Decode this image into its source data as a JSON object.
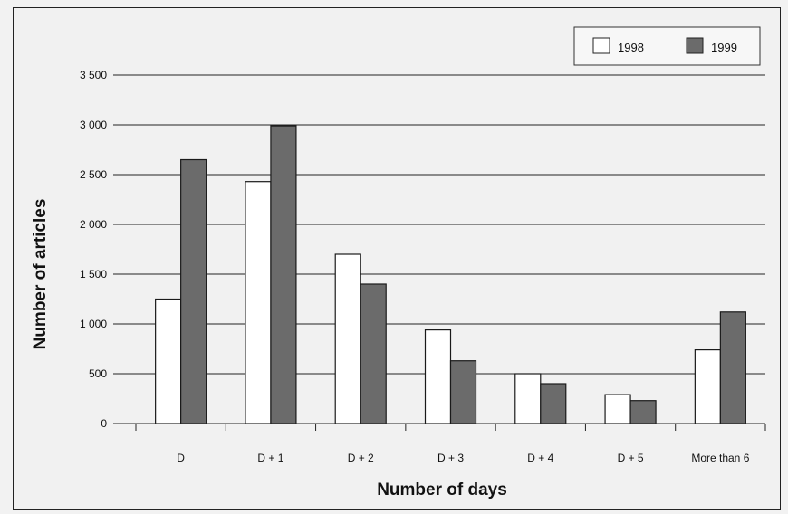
{
  "chart_data": {
    "type": "bar",
    "title": "",
    "xlabel": "Number of days",
    "ylabel": "Number of articles",
    "categories": [
      "D",
      "D + 1",
      "D + 2",
      "D + 3",
      "D + 4",
      "D + 5",
      "More than 6"
    ],
    "series": [
      {
        "name": "1998",
        "values": [
          1250,
          2430,
          1700,
          940,
          500,
          290,
          740
        ],
        "color": "#ffffff"
      },
      {
        "name": "1999",
        "values": [
          2650,
          2990,
          1400,
          630,
          400,
          230,
          1120
        ],
        "color": "#6b6b6b"
      }
    ],
    "ylim": [
      0,
      3500
    ],
    "yticks": [
      0,
      500,
      1000,
      1500,
      2000,
      2500,
      3000,
      3500
    ],
    "ytick_labels": [
      "0",
      "500",
      "1 000",
      "1 500",
      "2 000",
      "2 500",
      "3 000",
      "3 500"
    ],
    "grid": true,
    "legend_position": "top-right"
  }
}
